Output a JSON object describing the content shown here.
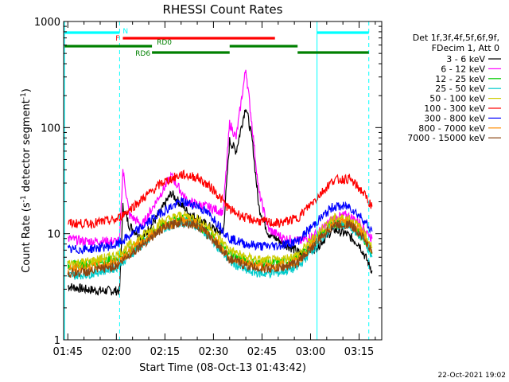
{
  "chart_data": {
    "type": "line",
    "title": "RHESSI Count Rates",
    "xlabel": "Start Time (08-Oct-13 01:43:42)",
    "ylabel_prefix": "Count Rate (s",
    "ylabel_sup1": "-1",
    "ylabel_mid": " detector segment",
    "ylabel_sup2": "-1",
    "ylabel_suffix": ")",
    "y_scale": "log",
    "ylim": [
      1,
      1000
    ],
    "xlim": [
      "01:43:42",
      "03:22:00"
    ],
    "x_ticks": [
      "01:45",
      "02:00",
      "02:15",
      "02:30",
      "02:45",
      "03:00",
      "03:15"
    ],
    "y_ticks": [
      "1",
      "10",
      "100",
      "1000"
    ],
    "legend_header": [
      "Det 1f,3f,4f,5f,6f,9f,",
      "FDecim 1, Att 0"
    ],
    "legend_position": "right",
    "footer_date": "22-Oct-2021 19:02",
    "series": [
      {
        "name": "3 - 6 keV",
        "color": "#000000",
        "x": [
          "01:45",
          "01:50",
          "01:55",
          "02:01",
          "02:02",
          "02:04",
          "02:08",
          "02:13",
          "02:17",
          "02:22",
          "02:28",
          "02:33",
          "02:35",
          "02:37",
          "02:40",
          "02:42",
          "02:44",
          "02:47",
          "02:52",
          "02:57",
          "03:02",
          "03:07",
          "03:11",
          "03:15",
          "03:19"
        ],
        "y": [
          3.2,
          3.0,
          2.9,
          2.9,
          18,
          12,
          9,
          15,
          24,
          16,
          12,
          10,
          75,
          60,
          160,
          75,
          18,
          10,
          8,
          6.5,
          7.5,
          11,
          10,
          8,
          4.5
        ]
      },
      {
        "name": "6 - 12 keV",
        "color": "#ff00ff",
        "x": [
          "01:45",
          "01:50",
          "01:55",
          "02:01",
          "02:02",
          "02:04",
          "02:08",
          "02:13",
          "02:17",
          "02:22",
          "02:28",
          "02:33",
          "02:35",
          "02:37",
          "02:40",
          "02:42",
          "02:44",
          "02:47",
          "02:52",
          "02:57",
          "03:02",
          "03:07",
          "03:11",
          "03:15",
          "03:19"
        ],
        "y": [
          9,
          8.5,
          8.5,
          8.5,
          40,
          15,
          12,
          22,
          35,
          20,
          18,
          16,
          110,
          80,
          360,
          100,
          25,
          11,
          9,
          8.5,
          10,
          14,
          15,
          13,
          9
        ]
      },
      {
        "name": "12 - 25 keV",
        "color": "#00cc00",
        "x": [
          "01:45",
          "01:52",
          "02:00",
          "02:07",
          "02:14",
          "02:20",
          "02:25",
          "02:30",
          "02:35",
          "02:40",
          "02:45",
          "02:50",
          "02:56",
          "03:02",
          "03:07",
          "03:12",
          "03:16",
          "03:19"
        ],
        "y": [
          5,
          5.2,
          5.8,
          8,
          12,
          14,
          12.5,
          9,
          6.5,
          5.5,
          5.2,
          5.3,
          5.8,
          9,
          12.5,
          12.5,
          9.5,
          6.5
        ]
      },
      {
        "name": "25 - 50 keV",
        "color": "#00cccc",
        "x": [
          "01:45",
          "01:52",
          "02:00",
          "02:07",
          "02:14",
          "02:20",
          "02:25",
          "02:30",
          "02:35",
          "02:40",
          "02:45",
          "02:50",
          "02:56",
          "03:02",
          "03:07",
          "03:12",
          "03:16",
          "03:19"
        ],
        "y": [
          4,
          4.2,
          4.8,
          7.5,
          11,
          13,
          12,
          8.5,
          5.5,
          4.5,
          4.2,
          4.3,
          4.8,
          8,
          12,
          12,
          9,
          6
        ]
      },
      {
        "name": "50 - 100 keV",
        "color": "#cccc00",
        "x": [
          "01:45",
          "01:52",
          "02:00",
          "02:07",
          "02:14",
          "02:20",
          "02:25",
          "02:30",
          "02:35",
          "02:40",
          "02:45",
          "02:50",
          "02:56",
          "03:02",
          "03:07",
          "03:12",
          "03:16",
          "03:19"
        ],
        "y": [
          5.2,
          5.5,
          6.3,
          9,
          13,
          15,
          14,
          10.5,
          7,
          6,
          5.6,
          5.6,
          6.3,
          10,
          14,
          14,
          11,
          7.5
        ]
      },
      {
        "name": "100 - 300 keV",
        "color": "#ff0000",
        "x": [
          "01:45",
          "01:52",
          "02:00",
          "02:07",
          "02:14",
          "02:20",
          "02:25",
          "02:30",
          "02:35",
          "02:40",
          "02:45",
          "02:50",
          "02:56",
          "03:02",
          "03:07",
          "03:12",
          "03:16",
          "03:19"
        ],
        "y": [
          12.5,
          12.5,
          13.5,
          20,
          30,
          36,
          34,
          26,
          17,
          14,
          13,
          12.5,
          14,
          22,
          32,
          33,
          25,
          18
        ]
      },
      {
        "name": "300 - 800 keV",
        "color": "#0000ff",
        "x": [
          "01:45",
          "01:52",
          "02:00",
          "02:07",
          "02:14",
          "02:20",
          "02:25",
          "02:30",
          "02:35",
          "02:40",
          "02:45",
          "02:50",
          "02:56",
          "03:02",
          "03:07",
          "03:12",
          "03:16",
          "03:19"
        ],
        "y": [
          7,
          7.2,
          7.8,
          11,
          16,
          20,
          18.5,
          14,
          9,
          8,
          7.6,
          7.7,
          8.5,
          13,
          18,
          18,
          14,
          10.5
        ]
      },
      {
        "name": "800 - 7000 keV",
        "color": "#ff8c00",
        "x": [
          "01:45",
          "01:52",
          "02:00",
          "02:07",
          "02:14",
          "02:20",
          "02:25",
          "02:30",
          "02:35",
          "02:40",
          "02:45",
          "02:50",
          "02:56",
          "03:02",
          "03:07",
          "03:12",
          "03:16",
          "03:19"
        ],
        "y": [
          4.6,
          4.8,
          5.4,
          8,
          11.5,
          13.5,
          12.5,
          9,
          6,
          5.2,
          4.9,
          4.9,
          5.5,
          8.8,
          12.5,
          12.8,
          10,
          6.8
        ]
      },
      {
        "name": "7000 - 15000 keV",
        "color": "#8b4513",
        "x": [
          "01:45",
          "01:52",
          "02:00",
          "02:07",
          "02:14",
          "02:20",
          "02:25",
          "02:30",
          "02:35",
          "02:40",
          "02:45",
          "02:50",
          "02:56",
          "03:02",
          "03:07",
          "03:12",
          "03:16",
          "03:19"
        ],
        "y": [
          4.2,
          4.4,
          5,
          7.5,
          11,
          13,
          12,
          8.7,
          5.8,
          5,
          4.7,
          4.7,
          5.3,
          8.4,
          12,
          12.3,
          9.6,
          6.5
        ]
      }
    ],
    "state_bars": [
      {
        "label": "N",
        "color": "#00ffff",
        "segments": [
          [
            "01:44",
            "02:01"
          ],
          [
            "03:02",
            "03:18"
          ]
        ]
      },
      {
        "label": "F",
        "color": "#ff0000",
        "segments": [
          [
            "02:02",
            "02:49"
          ]
        ]
      },
      {
        "label": "RD0",
        "color": "#008000",
        "segments": [
          [
            "01:44",
            "02:11"
          ],
          [
            "02:35",
            "02:56"
          ]
        ]
      },
      {
        "label": "RD6",
        "color": "#008000",
        "segments": [
          [
            "02:11",
            "02:35"
          ],
          [
            "02:56",
            "03:18"
          ]
        ]
      }
    ],
    "vertical_lines": [
      {
        "x": "01:44",
        "style": "solid",
        "color": "#00ffff"
      },
      {
        "x": "02:01",
        "style": "dashed",
        "color": "#00ffff"
      },
      {
        "x": "03:02",
        "style": "solid",
        "color": "#00ffff"
      },
      {
        "x": "03:18",
        "style": "dashed",
        "color": "#00ffff"
      }
    ]
  }
}
